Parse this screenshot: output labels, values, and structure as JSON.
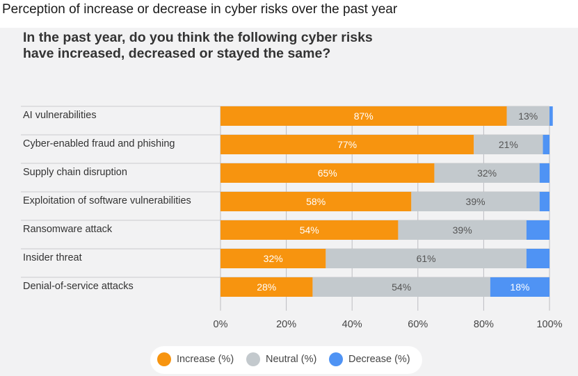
{
  "header": {
    "title": "Perception of increase or decrease in cyber risks over the past year"
  },
  "colors": {
    "increase": "#f7940f",
    "neutral": "#c3c9cd",
    "decrease": "#4f93f4",
    "panel_background": "#f2f2f3"
  },
  "chart_data": {
    "type": "bar",
    "orientation": "horizontal",
    "stacked": true,
    "title": "In the past year, do you think the following cyber risks have increased, decreased or stayed the same?",
    "categories": [
      "AI vulnerabilities",
      "Cyber-enabled fraud and phishing",
      "Supply chain disruption",
      "Exploitation of software vulnerabilities",
      "Ransomware attack",
      "Insider threat",
      "Denial-of-service attacks"
    ],
    "series": [
      {
        "name": "Increase (%)",
        "values": [
          87,
          77,
          65,
          58,
          54,
          32,
          28
        ],
        "labels": [
          "87%",
          "77%",
          "65%",
          "58%",
          "54%",
          "32%",
          "28%"
        ]
      },
      {
        "name": "Neutral (%)",
        "values": [
          13,
          21,
          32,
          39,
          39,
          61,
          54
        ],
        "labels": [
          "13%",
          "21%",
          "32%",
          "39%",
          "39%",
          "61%",
          "54%"
        ]
      },
      {
        "name": "Decrease (%)",
        "values": [
          1,
          2,
          3,
          3,
          7,
          7,
          18
        ],
        "labels": [
          "",
          "",
          "",
          "",
          "",
          "",
          "18%"
        ]
      }
    ],
    "x_ticks": [
      "0%",
      "20%",
      "40%",
      "60%",
      "80%",
      "100%"
    ],
    "xlim": [
      0,
      100
    ],
    "grid": true,
    "legend_position": "bottom-center"
  }
}
